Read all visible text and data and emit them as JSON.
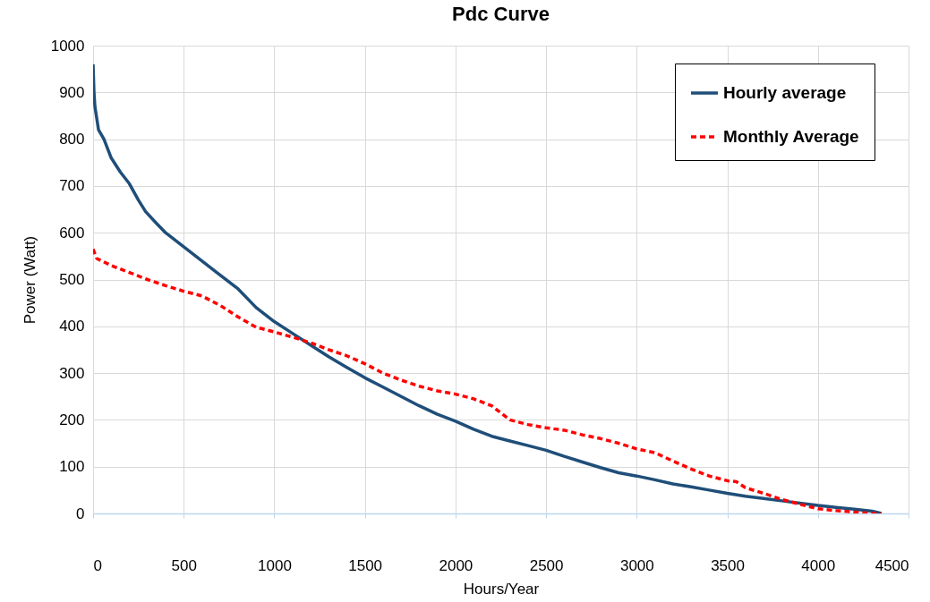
{
  "chart_data": {
    "type": "line",
    "title": "Pdc Curve",
    "xlabel": "Hours/Year",
    "ylabel": "Power (Watt)",
    "xlim": [
      0,
      4500
    ],
    "ylim": [
      0,
      1000
    ],
    "xticks": [
      0,
      500,
      1000,
      1500,
      2000,
      2500,
      3000,
      3500,
      4000,
      4500
    ],
    "yticks": [
      0,
      100,
      200,
      300,
      400,
      500,
      600,
      700,
      800,
      900,
      1000
    ],
    "grid": true,
    "legend": "top right",
    "series": [
      {
        "name": "Hourly average",
        "color": "#1f4e79",
        "line_style": "solid",
        "x": [
          0,
          5,
          10,
          30,
          60,
          100,
          150,
          200,
          250,
          290,
          350,
          400,
          500,
          600,
          700,
          800,
          900,
          1000,
          1100,
          1200,
          1300,
          1400,
          1500,
          1600,
          1700,
          1800,
          1900,
          2000,
          2100,
          2200,
          2300,
          2400,
          2500,
          2600,
          2700,
          2800,
          2900,
          3000,
          3100,
          3200,
          3300,
          3400,
          3500,
          3600,
          3700,
          3800,
          3900,
          4000,
          4100,
          4200,
          4300,
          4350
        ],
        "values": [
          960,
          900,
          870,
          820,
          800,
          760,
          730,
          705,
          670,
          645,
          620,
          600,
          570,
          540,
          510,
          480,
          440,
          410,
          385,
          360,
          335,
          312,
          290,
          270,
          250,
          230,
          212,
          197,
          180,
          165,
          155,
          145,
          135,
          122,
          110,
          98,
          87,
          80,
          72,
          63,
          57,
          50,
          43,
          37,
          32,
          27,
          22,
          17,
          13,
          9,
          5,
          0
        ]
      },
      {
        "name": "Monthly Average",
        "color": "#ff0000",
        "line_style": "dashed",
        "x": [
          0,
          20,
          100,
          200,
          300,
          400,
          500,
          600,
          700,
          800,
          900,
          1000,
          1100,
          1200,
          1300,
          1400,
          1500,
          1600,
          1700,
          1800,
          1900,
          2000,
          2100,
          2200,
          2300,
          2400,
          2500,
          2600,
          2700,
          2800,
          2900,
          3000,
          3100,
          3200,
          3300,
          3400,
          3500,
          3550,
          3600,
          3700,
          3800,
          3900,
          4000,
          4100,
          4200,
          4300,
          4350
        ],
        "values": [
          565,
          545,
          530,
          515,
          500,
          487,
          475,
          465,
          445,
          420,
          398,
          388,
          377,
          365,
          350,
          337,
          320,
          300,
          285,
          272,
          262,
          255,
          245,
          230,
          200,
          190,
          183,
          178,
          168,
          160,
          150,
          138,
          130,
          112,
          95,
          80,
          70,
          68,
          55,
          43,
          30,
          20,
          10,
          6,
          3,
          0,
          0
        ]
      }
    ]
  }
}
